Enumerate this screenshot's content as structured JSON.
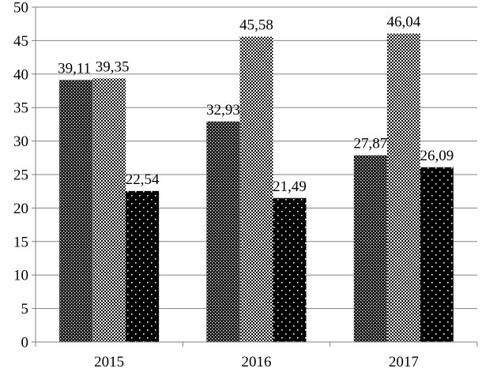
{
  "chart_data": {
    "type": "bar",
    "categories": [
      "2015",
      "2016",
      "2017"
    ],
    "series": [
      {
        "values": [
          39.11,
          32.93,
          27.87
        ],
        "labels": [
          "39,11",
          "32,93",
          "27,87"
        ],
        "pattern": "dense-dots"
      },
      {
        "values": [
          39.35,
          45.58,
          46.04
        ],
        "labels": [
          "39,35",
          "45,58",
          "46,04"
        ],
        "pattern": "checker"
      },
      {
        "values": [
          22.54,
          21.49,
          26.09
        ],
        "labels": [
          "22,54",
          "21,49",
          "26,09"
        ],
        "pattern": "sparse-dots"
      }
    ],
    "yticks": [
      "0",
      "5",
      "10",
      "15",
      "20",
      "25",
      "30",
      "35",
      "40",
      "45",
      "50"
    ],
    "ylim": [
      0,
      50
    ],
    "title": "",
    "xlabel": "",
    "ylabel": "",
    "grid": true,
    "legend": "none"
  },
  "colors": {
    "bar_fill": "#000000",
    "pattern_dot": "#ffffff",
    "grid": "#808080",
    "axis": "#808080",
    "text": "#000000"
  }
}
